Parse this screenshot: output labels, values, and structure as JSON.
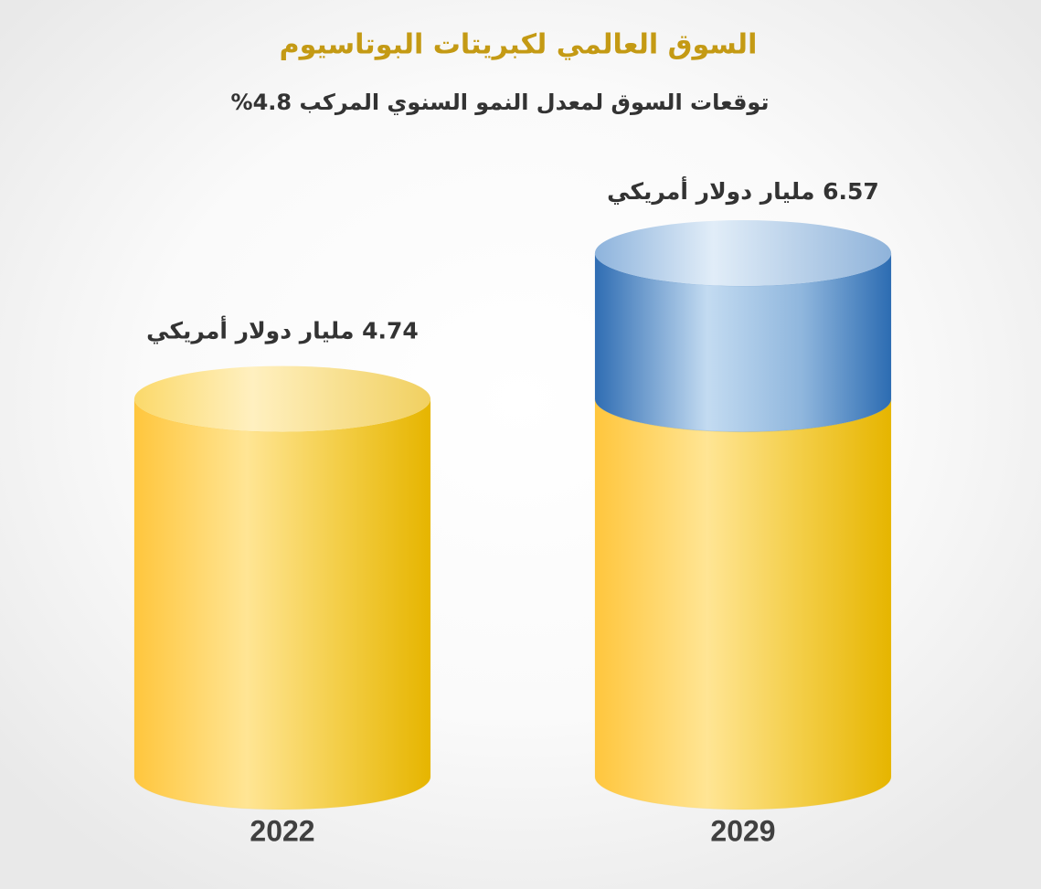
{
  "chart_data": {
    "type": "cylinder",
    "title": "السوق العالمي لكبريتات البوتاسيوم",
    "subtitle": "توقعات السوق لمعدل النمو السنوي المركب 4.8%",
    "categories": [
      "2022",
      "2029"
    ],
    "values": [
      4.74,
      6.57
    ],
    "value_labels": [
      "4.74 مليار دولار أمريكي",
      "6.57 مليار دولار أمريكي"
    ],
    "color": "#f2c12e",
    "growth_color": "#3a78bd"
  }
}
